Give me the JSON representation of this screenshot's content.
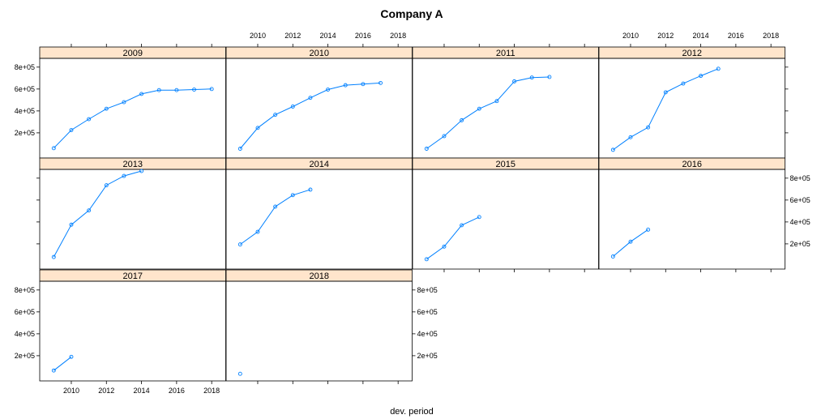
{
  "chart_data": {
    "type": "line",
    "title": "Company A",
    "xlabel": "dev. period",
    "ylabel": "",
    "xlim": [
      2008.2,
      2018.8
    ],
    "ylim": [
      -30000,
      880000
    ],
    "x_ticks": [
      2010,
      2012,
      2014,
      2016,
      2018
    ],
    "y_ticks": [
      200000,
      400000,
      600000,
      800000
    ],
    "y_tick_labels": [
      "2e+05",
      "4e+05",
      "6e+05",
      "8e+05"
    ],
    "x_tick_labels": [
      "2010",
      "2012",
      "2014",
      "2016",
      "2018"
    ],
    "colors": {
      "line": "#0080ff",
      "strip_bg": "#ffe5cc",
      "frame": "#000000"
    },
    "layout": {
      "columns": 4,
      "rows": 3
    },
    "panels": [
      {
        "name": "2009",
        "x": [
          2009,
          2010,
          2011,
          2012,
          2013,
          2014,
          2015,
          2016,
          2017,
          2018
        ],
        "y": [
          60000,
          225000,
          325000,
          420000,
          480000,
          555000,
          590000,
          590000,
          595000,
          600000
        ]
      },
      {
        "name": "2010",
        "x": [
          2009,
          2010,
          2011,
          2012,
          2013,
          2014,
          2015,
          2016,
          2017
        ],
        "y": [
          55000,
          245000,
          365000,
          440000,
          520000,
          595000,
          635000,
          645000,
          655000
        ]
      },
      {
        "name": "2011",
        "x": [
          2009,
          2010,
          2011,
          2012,
          2013,
          2014,
          2015,
          2016
        ],
        "y": [
          55000,
          170000,
          315000,
          420000,
          490000,
          670000,
          705000,
          710000
        ]
      },
      {
        "name": "2012",
        "x": [
          2009,
          2010,
          2011,
          2012,
          2013,
          2014,
          2015
        ],
        "y": [
          45000,
          160000,
          250000,
          570000,
          650000,
          720000,
          785000
        ]
      },
      {
        "name": "2013",
        "x": [
          2009,
          2010,
          2011,
          2012,
          2013,
          2014
        ],
        "y": [
          80000,
          375000,
          505000,
          735000,
          820000,
          865000
        ]
      },
      {
        "name": "2014",
        "x": [
          2009,
          2010,
          2011,
          2012,
          2013
        ],
        "y": [
          195000,
          310000,
          540000,
          645000,
          695000
        ]
      },
      {
        "name": "2015",
        "x": [
          2009,
          2010,
          2011,
          2012
        ],
        "y": [
          60000,
          175000,
          370000,
          445000
        ]
      },
      {
        "name": "2016",
        "x": [
          2009,
          2010,
          2011
        ],
        "y": [
          85000,
          220000,
          330000
        ]
      },
      {
        "name": "2017",
        "x": [
          2009,
          2010
        ],
        "y": [
          65000,
          190000
        ]
      },
      {
        "name": "2018",
        "x": [
          2009
        ],
        "y": [
          35000
        ]
      }
    ]
  }
}
